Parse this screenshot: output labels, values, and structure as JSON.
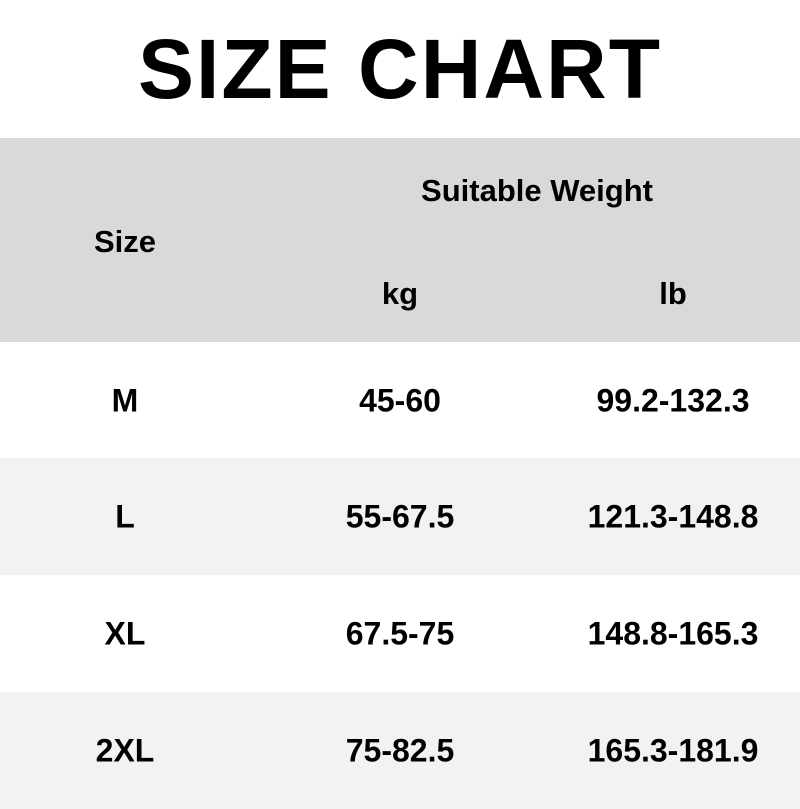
{
  "title": "SIZE CHART",
  "header": {
    "size": "Size",
    "group": "Suitable Weight",
    "kg": "kg",
    "lb": "lb"
  },
  "colors": {
    "header_bg": "#d9d9d9",
    "alt_row_bg": "#f2f2f2",
    "row_bg": "#ffffff"
  },
  "rows": [
    {
      "size": "M",
      "kg": "45-60",
      "lb": "99.2-132.3"
    },
    {
      "size": "L",
      "kg": "55-67.5",
      "lb": "121.3-148.8"
    },
    {
      "size": "XL",
      "kg": "67.5-75",
      "lb": "148.8-165.3"
    },
    {
      "size": "2XL",
      "kg": "75-82.5",
      "lb": "165.3-181.9"
    }
  ]
}
